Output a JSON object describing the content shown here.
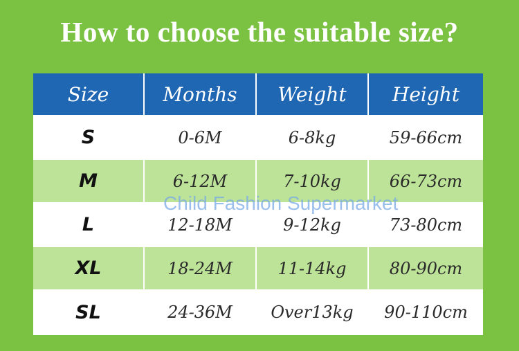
{
  "title": "How to choose the suitable size?",
  "table": {
    "headers": [
      "Size",
      "Months",
      "Weight",
      "Height"
    ],
    "rows": [
      [
        "S",
        "0-6M",
        "6-8kg",
        "59-66cm"
      ],
      [
        "M",
        "6-12M",
        "7-10kg",
        "66-73cm"
      ],
      [
        "L",
        "12-18M",
        "9-12kg",
        "73-80cm"
      ],
      [
        "XL",
        "18-24M",
        "11-14kg",
        "80-90cm"
      ],
      [
        "SL",
        "24-36M",
        "Over13kg",
        "90-110cm"
      ]
    ]
  },
  "watermark": "Child Fashion Supermarket",
  "colors": {
    "background": "#7cc242",
    "header": "#1f66b3",
    "row_alt": "#bde398"
  }
}
